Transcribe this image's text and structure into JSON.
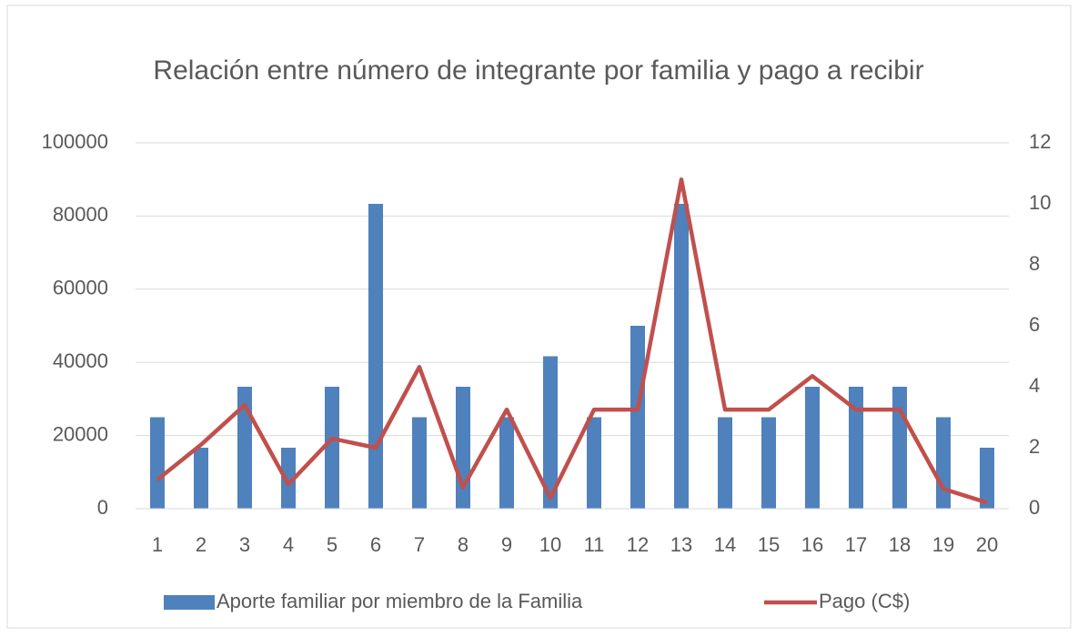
{
  "chart_data": {
    "type": "bar-line",
    "title": "Relación entre número de integrante por familia y pago a recibir",
    "categories": [
      "1",
      "2",
      "3",
      "4",
      "5",
      "6",
      "7",
      "8",
      "9",
      "10",
      "11",
      "12",
      "13",
      "14",
      "15",
      "16",
      "17",
      "18",
      "19",
      "20"
    ],
    "series": [
      {
        "name": "Aporte familiar por miembro de la Familia",
        "type": "bar",
        "color": "#4f81bd",
        "values": [
          25000,
          16667,
          33333,
          16667,
          33333,
          83333,
          25000,
          33333,
          25000,
          41667,
          25000,
          50000,
          83333,
          25000,
          25000,
          33333,
          33333,
          33333,
          25000,
          16667
        ]
      },
      {
        "name": "Pago (C$)",
        "type": "line",
        "axis": "y2",
        "color": "#c0504d",
        "values": [
          0.95,
          2.1,
          3.4,
          0.8,
          2.3,
          2.0,
          4.65,
          0.7,
          3.25,
          0.35,
          3.25,
          3.25,
          10.8,
          3.25,
          3.25,
          4.35,
          3.25,
          3.25,
          0.65,
          0.2
        ]
      }
    ],
    "ylim": [
      0,
      100000
    ],
    "yticks": [
      0,
      20000,
      40000,
      60000,
      80000,
      100000
    ],
    "y2lim": [
      0,
      12
    ],
    "y2ticks": [
      0,
      2,
      4,
      6,
      8,
      10,
      12
    ],
    "grid": true,
    "legend": "bottom"
  }
}
